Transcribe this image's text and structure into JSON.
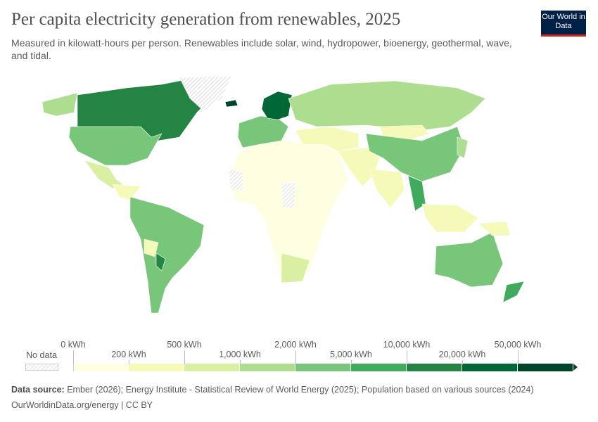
{
  "header": {
    "title": "Per capita electricity generation from renewables, 2025",
    "subtitle": "Measured in kilowatt-hours per person. Renewables include solar, wind, hydropower, bioenergy, geothermal, wave, and tidal.",
    "logo": "Our World in Data"
  },
  "legend": {
    "no_data_label": "No data",
    "bins": [
      {
        "label": "0 kWh",
        "color": "#fefee0"
      },
      {
        "label": "200 kWh",
        "color": "#f6fab8"
      },
      {
        "label": "500 kWh",
        "color": "#d9f0a3"
      },
      {
        "label": "1,000 kWh",
        "color": "#addd8e"
      },
      {
        "label": "2,000 kWh",
        "color": "#78c679"
      },
      {
        "label": "5,000 kWh",
        "color": "#41ab5d"
      },
      {
        "label": "10,000 kWh",
        "color": "#238443"
      },
      {
        "label": "20,000 kWh",
        "color": "#006837"
      },
      {
        "label": "50,000 kWh",
        "color": "#004529"
      }
    ]
  },
  "footer": {
    "source_label": "Data source:",
    "source": "Ember (2026); Energy Institute - Statistical Review of World Energy (2025); Population based on various sources (2024)",
    "url": "OurWorldinData.org/energy | CC BY"
  }
}
